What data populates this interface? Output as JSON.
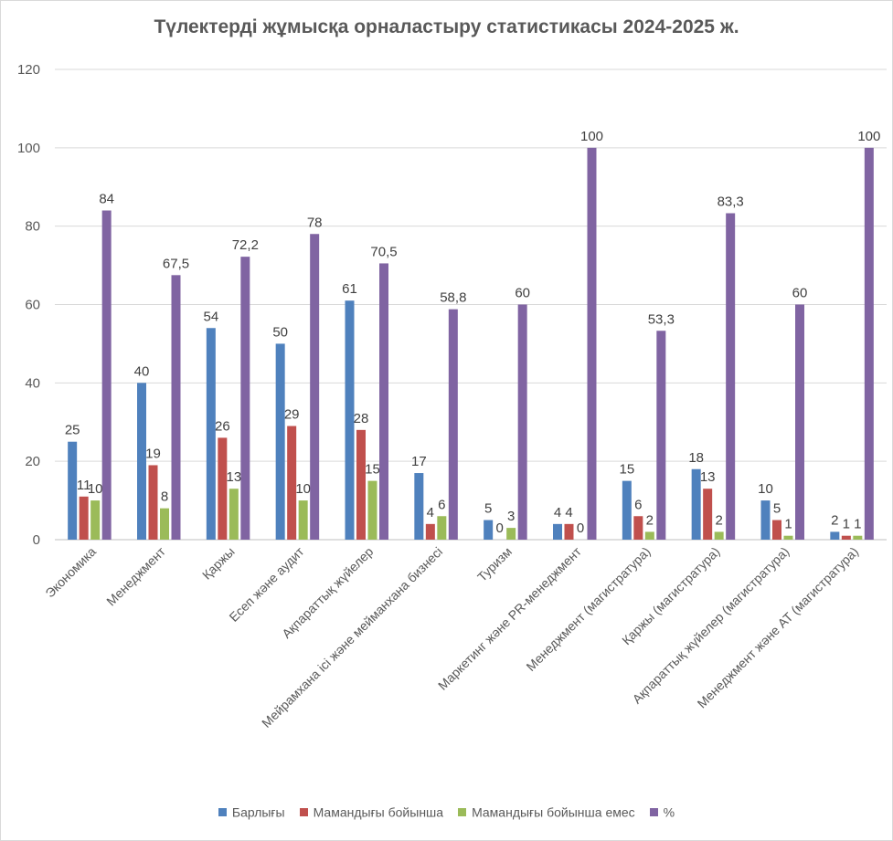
{
  "chart_data": {
    "type": "bar",
    "title": "Түлектерді жұмысқа орналастыру статистикасы 2024-2025 ж.",
    "xlabel": "",
    "ylabel": "",
    "ylim": [
      0,
      120
    ],
    "yticks": [
      "0",
      "20",
      "40",
      "60",
      "80",
      "100",
      "120"
    ],
    "grid": true,
    "legend_position": "bottom",
    "categories": [
      "Экономика",
      "Менеджмент",
      "Қаржы",
      "Есеп және аудит",
      "Ақпараттық жүйелер",
      "Мейрамхана ісі және мейманхана бизнесі",
      "Туризм",
      "Маркетинг және PR-менеджмент",
      "Менеджмент (магистратура)",
      "Қаржы (магистратура)",
      "Ақпараттық жүйелер (магистратура)",
      "Менеджмент және АТ (магистратура)"
    ],
    "series": [
      {
        "name": "Барлығы",
        "color": "#4f81bd",
        "values": [
          25,
          40,
          54,
          50,
          61,
          17,
          5,
          4,
          15,
          18,
          10,
          2
        ],
        "labels": [
          "25",
          "40",
          "54",
          "50",
          "61",
          "17",
          "5",
          "4",
          "15",
          "18",
          "10",
          "2"
        ]
      },
      {
        "name": "Мамандығы бойынша",
        "color": "#c0504d",
        "values": [
          11,
          19,
          26,
          29,
          28,
          4,
          0,
          4,
          6,
          13,
          5,
          1
        ],
        "labels": [
          "11",
          "19",
          "26",
          "29",
          "28",
          "4",
          "0",
          "4",
          "6",
          "13",
          "5",
          "1"
        ]
      },
      {
        "name": "Мамандығы бойынша емес",
        "color": "#9bbb59",
        "values": [
          10,
          8,
          13,
          10,
          15,
          6,
          3,
          0,
          2,
          2,
          1,
          1
        ],
        "labels": [
          "10",
          "8",
          "13",
          "10",
          "15",
          "6",
          "3",
          "0",
          "2",
          "2",
          "1",
          "1"
        ]
      },
      {
        "name": "%",
        "color": "#8064a2",
        "values": [
          84,
          67.5,
          72.2,
          78,
          70.5,
          58.8,
          60,
          100,
          53.3,
          83.3,
          60,
          100
        ],
        "labels": [
          "84",
          "67,5",
          "72,2",
          "78",
          "70,5",
          "58,8",
          "60",
          "100",
          "53,3",
          "83,3",
          "60",
          "100"
        ]
      }
    ]
  }
}
